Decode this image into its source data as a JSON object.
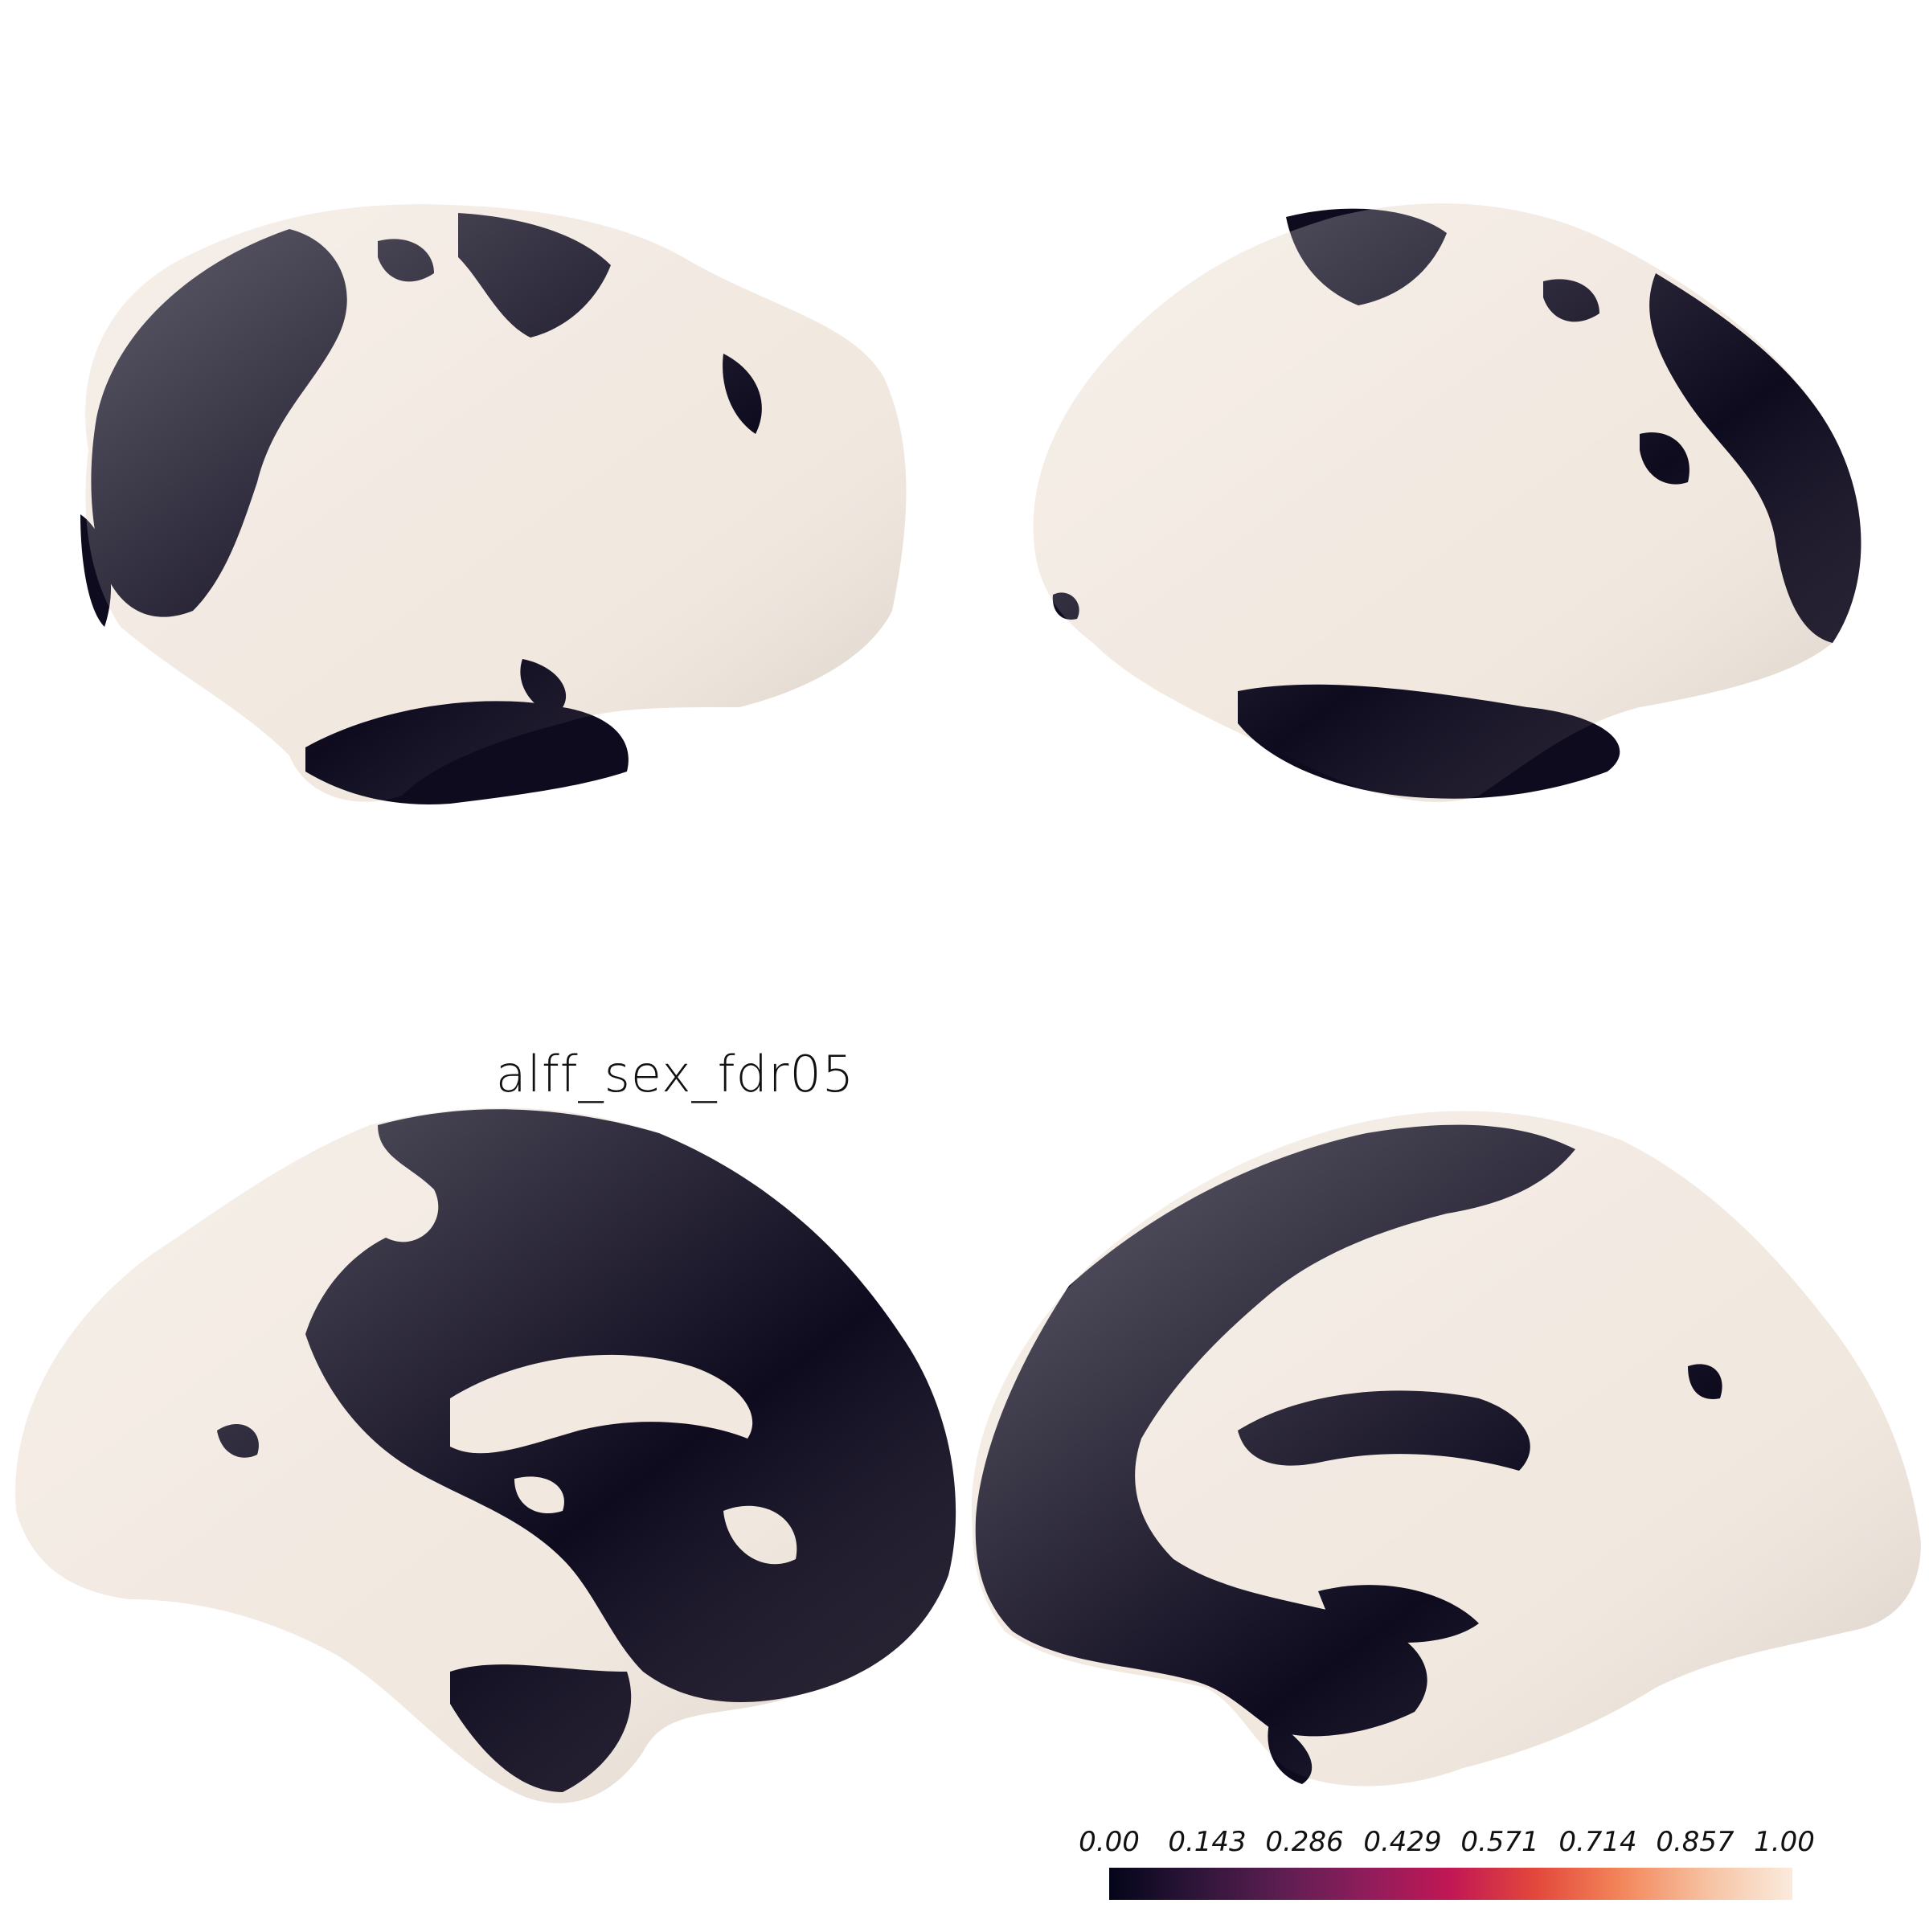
{
  "figure": {
    "title": "alff_sex_fdr05",
    "colors": {
      "background": "#ffffff",
      "surface_low": "#0f0b1f",
      "surface_high": "#f1e8df"
    }
  },
  "colorbar": {
    "colormap": "rocket",
    "range": [
      0.0,
      1.0
    ],
    "tick_labels": [
      "0.00",
      "0.143",
      "0.286",
      "0.429",
      "0.571",
      "0.714",
      "0.857",
      "1.00"
    ],
    "stops": [
      "#03051a",
      "#2d1538",
      "#5c1e51",
      "#8e1d5b",
      "#c11754",
      "#e3483b",
      "#f3865a",
      "#f6c2a2",
      "#faebdd"
    ]
  },
  "views": [
    {
      "hemisphere": "left",
      "view": "lateral"
    },
    {
      "hemisphere": "right",
      "view": "lateral"
    },
    {
      "hemisphere": "left",
      "view": "medial"
    },
    {
      "hemisphere": "right",
      "view": "medial"
    }
  ]
}
